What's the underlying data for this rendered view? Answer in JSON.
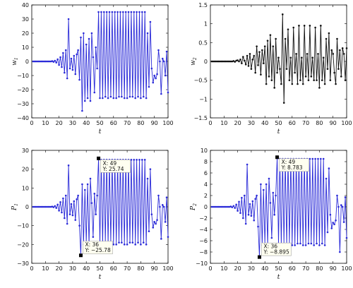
{
  "chart_data": [
    {
      "type": "line",
      "ylabel": "w",
      "ylabel_sub": "1",
      "xlabel": "t",
      "color": "#2a2ad8",
      "xlim": [
        0,
        100
      ],
      "ylim": [
        -40,
        40
      ],
      "xticks": [
        0,
        10,
        20,
        30,
        40,
        50,
        60,
        70,
        80,
        90,
        100
      ],
      "yticks": [
        -40,
        -30,
        -20,
        -10,
        0,
        10,
        20,
        30,
        40
      ],
      "series": [
        {
          "x": [
            1,
            2,
            3,
            4,
            5,
            6,
            7,
            8,
            9,
            10,
            11,
            12,
            13,
            14,
            15,
            16,
            17,
            18,
            19,
            20,
            21,
            22,
            23,
            24,
            25,
            26,
            27,
            28,
            29,
            30,
            31,
            32,
            33,
            34,
            35,
            36,
            37,
            38,
            39,
            40,
            41,
            42,
            43,
            44,
            45,
            46,
            47,
            48,
            49,
            50,
            51,
            52,
            53,
            54,
            55,
            56,
            57,
            58,
            59,
            60,
            61,
            62,
            63,
            64,
            65,
            66,
            67,
            68,
            69,
            70,
            71,
            72,
            73,
            74,
            75,
            76,
            77,
            78,
            79,
            80,
            81,
            82,
            83,
            84,
            85,
            86,
            87,
            88,
            89,
            90,
            91,
            92,
            93,
            94,
            95,
            96,
            97,
            98,
            99,
            100
          ],
          "y": [
            0,
            0,
            0,
            0,
            0,
            0,
            0,
            0,
            0,
            0,
            0,
            0,
            0,
            0,
            0.2,
            -0.3,
            0.5,
            -0.8,
            1.5,
            -2.5,
            3,
            -4,
            6,
            -8,
            8,
            -12,
            30,
            -5,
            2,
            -6,
            4,
            -9,
            5,
            8,
            -13,
            17,
            -35,
            20,
            -28,
            12,
            -26,
            16,
            -28,
            20,
            3,
            -22,
            10,
            -5,
            35,
            -26,
            35,
            -26,
            35,
            -25,
            35,
            -26,
            35,
            -25,
            35,
            -26,
            35,
            -26,
            35,
            -25,
            35,
            -25,
            35,
            -26,
            35,
            -26,
            35,
            -25,
            35,
            -25,
            35,
            -26,
            35,
            -25,
            35,
            -26,
            35,
            -25,
            35,
            -26,
            20,
            -18,
            28,
            -5,
            -15,
            -10,
            -12,
            -9,
            8,
            0,
            -23,
            2,
            0,
            -10,
            7,
            -22
          ]
        }
      ]
    },
    {
      "type": "line",
      "ylabel": "w",
      "ylabel_sub": "2",
      "xlabel": "t",
      "color": "#111111",
      "xlim": [
        0,
        100
      ],
      "ylim": [
        -1.5,
        1.5
      ],
      "xticks": [
        0,
        10,
        20,
        30,
        40,
        50,
        60,
        70,
        80,
        90,
        100
      ],
      "yticks": [
        -1.5,
        -1,
        -0.5,
        0,
        0.5,
        1,
        1.5
      ],
      "series": [
        {
          "x": [
            1,
            2,
            3,
            4,
            5,
            6,
            7,
            8,
            9,
            10,
            11,
            12,
            13,
            14,
            15,
            16,
            17,
            18,
            19,
            20,
            21,
            22,
            23,
            24,
            25,
            26,
            27,
            28,
            29,
            30,
            31,
            32,
            33,
            34,
            35,
            36,
            37,
            38,
            39,
            40,
            41,
            42,
            43,
            44,
            45,
            46,
            47,
            48,
            49,
            50,
            51,
            52,
            53,
            54,
            55,
            56,
            57,
            58,
            59,
            60,
            61,
            62,
            63,
            64,
            65,
            66,
            67,
            68,
            69,
            70,
            71,
            72,
            73,
            74,
            75,
            76,
            77,
            78,
            79,
            80,
            81,
            82,
            83,
            84,
            85,
            86,
            87,
            88,
            89,
            90,
            91,
            92,
            93,
            94,
            95,
            96,
            97,
            98,
            99,
            100
          ],
          "y": [
            0,
            0,
            0,
            0,
            0,
            0,
            0,
            0,
            0,
            0,
            0,
            0,
            0,
            0,
            0,
            0,
            0.01,
            -0.01,
            0.02,
            0.03,
            0,
            0.05,
            -0.05,
            0.12,
            0.02,
            -0.08,
            0.15,
            -0.12,
            0.2,
            -0.2,
            0.05,
            0.15,
            -0.3,
            0.4,
            -0.1,
            0.25,
            -0.35,
            0.3,
            -0.05,
            0.4,
            -0.6,
            0.55,
            -0.4,
            0.7,
            -0.5,
            0.4,
            -0.7,
            0.6,
            -0.3,
            0.1,
            -0.2,
            -0.6,
            1.25,
            -1.1,
            0.6,
            -0.2,
            0.85,
            -0.5,
            0.1,
            -0.6,
            0.9,
            -0.3,
            0.2,
            -0.6,
            0.95,
            -0.5,
            0.1,
            -0.6,
            0.95,
            -0.4,
            0.2,
            -0.5,
            0.95,
            -0.4,
            0.1,
            -0.5,
            0.9,
            -0.5,
            0.2,
            -0.7,
            0.95,
            -0.5,
            0.1,
            -0.6,
            0.6,
            -0.2,
            0.75,
            -0.5,
            0.3,
            0.2,
            -0.3,
            -0.6,
            0.6,
            -0.2,
            0.3,
            -0.4,
            0.35,
            0.2,
            -0.5,
            0.35
          ]
        }
      ]
    },
    {
      "type": "line",
      "ylabel": "P",
      "ylabel_sub": "1",
      "xlabel": "t",
      "color": "#2a2ad8",
      "xlim": [
        0,
        100
      ],
      "ylim": [
        -30,
        30
      ],
      "xticks": [
        0,
        10,
        20,
        30,
        40,
        50,
        60,
        70,
        80,
        90,
        100
      ],
      "yticks": [
        -30,
        -20,
        -10,
        0,
        10,
        20,
        30
      ],
      "series": [
        {
          "x": [
            1,
            2,
            3,
            4,
            5,
            6,
            7,
            8,
            9,
            10,
            11,
            12,
            13,
            14,
            15,
            16,
            17,
            18,
            19,
            20,
            21,
            22,
            23,
            24,
            25,
            26,
            27,
            28,
            29,
            30,
            31,
            32,
            33,
            34,
            35,
            36,
            37,
            38,
            39,
            40,
            41,
            42,
            43,
            44,
            45,
            46,
            47,
            48,
            49,
            50,
            51,
            52,
            53,
            54,
            55,
            56,
            57,
            58,
            59,
            60,
            61,
            62,
            63,
            64,
            65,
            66,
            67,
            68,
            69,
            70,
            71,
            72,
            73,
            74,
            75,
            76,
            77,
            78,
            79,
            80,
            81,
            82,
            83,
            84,
            85,
            86,
            87,
            88,
            89,
            90,
            91,
            92,
            93,
            94,
            95,
            96,
            97,
            98,
            99,
            100
          ],
          "y": [
            0,
            0,
            0,
            0,
            0,
            0,
            0,
            0,
            0,
            0,
            0,
            0,
            0,
            0,
            0.1,
            -0.2,
            0.4,
            -0.6,
            1.2,
            -2,
            2.5,
            -3,
            4.5,
            -6,
            6,
            -9,
            22,
            -4,
            1.5,
            -4.5,
            3,
            -7,
            4,
            6,
            -10,
            -25.78,
            12,
            -20,
            9,
            -19,
            12,
            -20,
            15,
            2,
            -16,
            7,
            -4,
            6,
            25.74,
            -20,
            25,
            -20,
            25,
            -19,
            25,
            -20,
            25,
            -19,
            25,
            -20,
            25,
            -20,
            25,
            -19,
            25,
            -19,
            25,
            -20,
            25,
            -20,
            25,
            -19,
            25,
            -19,
            25,
            -20,
            25,
            -19,
            25,
            -20,
            25,
            -19,
            25,
            -20,
            15,
            -13,
            20,
            -4,
            -11,
            -8,
            -9,
            -7,
            6,
            0,
            -17,
            1,
            0,
            -8,
            5,
            -16
          ]
        }
      ],
      "annotations": [
        {
          "x_label": "X: 49",
          "y_label": "Y: 25.74",
          "x": 49,
          "y": 25.74
        },
        {
          "x_label": "X: 36",
          "y_label": "Y: −25.78",
          "x": 36,
          "y": -25.78
        }
      ]
    },
    {
      "type": "line",
      "ylabel": "P",
      "ylabel_sub": "2",
      "xlabel": "t",
      "color": "#2a2ad8",
      "xlim": [
        0,
        100
      ],
      "ylim": [
        -10,
        10
      ],
      "xticks": [
        0,
        10,
        20,
        30,
        40,
        50,
        60,
        70,
        80,
        90,
        100
      ],
      "yticks": [
        -10,
        -8,
        -6,
        -4,
        -2,
        0,
        2,
        4,
        6,
        8,
        10
      ],
      "series": [
        {
          "x": [
            1,
            2,
            3,
            4,
            5,
            6,
            7,
            8,
            9,
            10,
            11,
            12,
            13,
            14,
            15,
            16,
            17,
            18,
            19,
            20,
            21,
            22,
            23,
            24,
            25,
            26,
            27,
            28,
            29,
            30,
            31,
            32,
            33,
            34,
            35,
            36,
            37,
            38,
            39,
            40,
            41,
            42,
            43,
            44,
            45,
            46,
            47,
            48,
            49,
            50,
            51,
            52,
            53,
            54,
            55,
            56,
            57,
            58,
            59,
            60,
            61,
            62,
            63,
            64,
            65,
            66,
            67,
            68,
            69,
            70,
            71,
            72,
            73,
            74,
            75,
            76,
            77,
            78,
            79,
            80,
            81,
            82,
            83,
            84,
            85,
            86,
            87,
            88,
            89,
            90,
            91,
            92,
            93,
            94,
            95,
            96,
            97,
            98,
            99,
            100
          ],
          "y": [
            0,
            0,
            0,
            0,
            0,
            0,
            0,
            0,
            0,
            0,
            0,
            0,
            0,
            0,
            0.05,
            -0.08,
            0.15,
            -0.2,
            0.4,
            -0.7,
            0.9,
            -1.1,
            1.6,
            -2,
            2,
            -3,
            7.5,
            -1.4,
            0.5,
            -1.6,
            1,
            -2.4,
            1.4,
            2,
            -3.5,
            -8.895,
            4,
            -6.8,
            3,
            -6.5,
            4,
            -6.8,
            5,
            0.7,
            -5.5,
            2.5,
            -1.4,
            2,
            8.783,
            -6.8,
            8.5,
            -6.8,
            8.5,
            -6.5,
            8.5,
            -6.8,
            8.5,
            -6.5,
            8.5,
            -6.8,
            8.5,
            -6.8,
            8.5,
            -6.5,
            8.5,
            -6.5,
            8.5,
            -6.8,
            8.5,
            -6.8,
            8.5,
            -6.5,
            8.5,
            -6.5,
            8.5,
            -6.8,
            8.5,
            -6.5,
            8.5,
            -6.8,
            8.5,
            -6.5,
            8.5,
            -6.8,
            5,
            -4.5,
            6.8,
            -1.4,
            -3.8,
            -2.8,
            -3.1,
            -2.4,
            2,
            0,
            -8,
            0.3,
            0,
            -2.7,
            1.7,
            -5.5
          ]
        }
      ],
      "annotations": [
        {
          "x_label": "X: 49",
          "y_label": "Y: 8.783",
          "x": 49,
          "y": 8.783
        },
        {
          "x_label": "X: 36",
          "y_label": "Y: −8.895",
          "x": 36,
          "y": -8.895
        }
      ]
    }
  ]
}
